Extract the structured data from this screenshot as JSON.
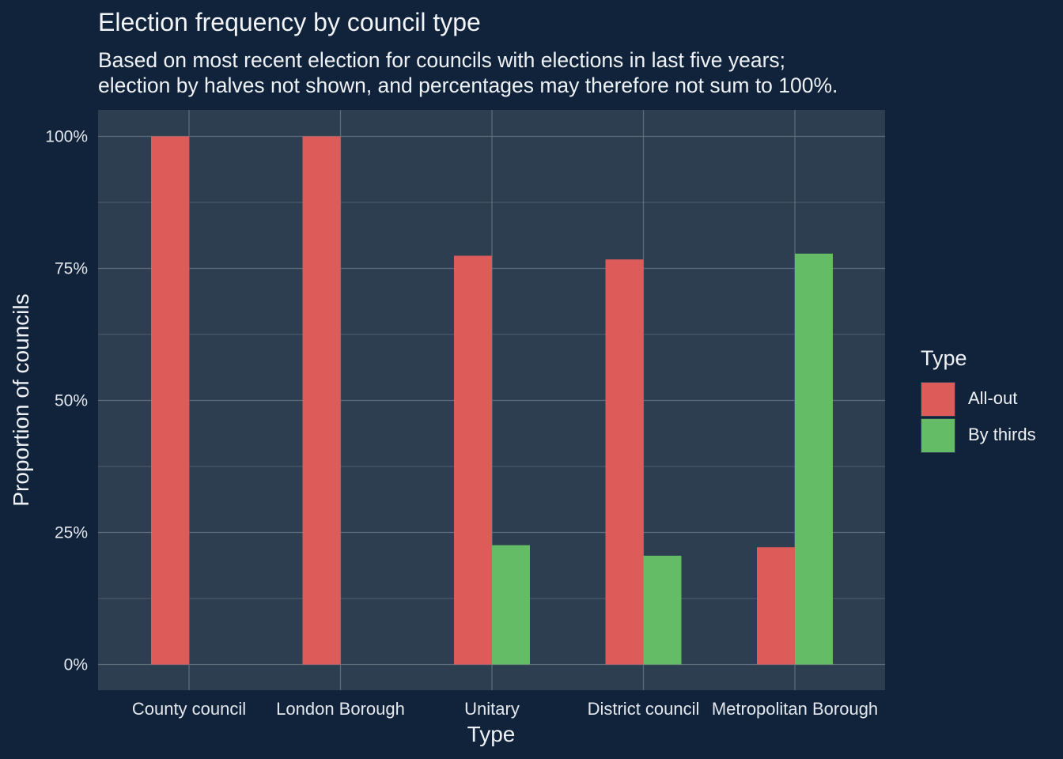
{
  "title": "Election frequency by council type",
  "subtitle_lines": [
    "Based on most recent election for councils with elections in last five years;",
    "election by halves not shown, and percentages may therefore not sum to 100%."
  ],
  "legend": {
    "title": "Type",
    "items": [
      {
        "label": "All-out",
        "color": "#dd5c5a"
      },
      {
        "label": "By thirds",
        "color": "#64bd66"
      }
    ]
  },
  "colors": {
    "page_background": "#10233a",
    "panel_background": "#2c3e50",
    "grid": "#5e6b78"
  },
  "chart_data": {
    "type": "bar",
    "title": "Election frequency by council type",
    "xlabel": "Type",
    "ylabel": "Proportion of councils",
    "categories": [
      "County council",
      "London Borough",
      "Unitary",
      "District council",
      "Metropolitan Borough"
    ],
    "series": [
      {
        "name": "All-out",
        "color": "#dd5c5a",
        "values": [
          1.0,
          1.0,
          0.774,
          0.767,
          0.222
        ]
      },
      {
        "name": "By thirds",
        "color": "#64bd66",
        "values": [
          null,
          null,
          0.226,
          0.206,
          0.778
        ]
      }
    ],
    "ylim": [
      -0.05,
      1.05
    ],
    "yticks": [
      0,
      0.25,
      0.5,
      0.75,
      1.0
    ],
    "ytick_labels": [
      "0%",
      "25%",
      "50%",
      "75%",
      "100%"
    ],
    "grid": true,
    "legend_position": "right"
  }
}
